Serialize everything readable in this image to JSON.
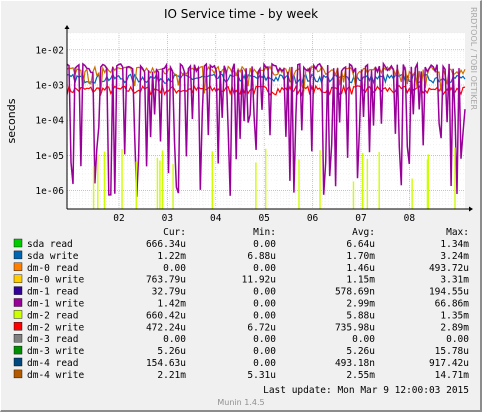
{
  "chart_data": {
    "type": "line",
    "title": "IO Service time - by week",
    "ylabel": "seconds",
    "y_scale": "log",
    "ylim": [
      3e-07,
      0.03
    ],
    "y_ticks": [
      {
        "value": 0.01,
        "label": "1e-02"
      },
      {
        "value": 0.001,
        "label": "1e-03"
      },
      {
        "value": 0.0001,
        "label": "1e-04"
      },
      {
        "value": 1e-05,
        "label": "1e-05"
      },
      {
        "value": 1e-06,
        "label": "1e-06"
      }
    ],
    "x_ticks": [
      "02",
      "03",
      "04",
      "05",
      "06",
      "07",
      "08"
    ],
    "grid": true,
    "series": [
      {
        "name": "dm-2 write",
        "color": "#ff0000",
        "base": 0.0007
      },
      {
        "name": "sda write",
        "color": "#0066b3",
        "base": 0.0015
      },
      {
        "name": "dm-4 write",
        "color": "#cc7000",
        "base": 0.0025
      },
      {
        "name": "dm-1 write",
        "color": "#990099",
        "base": 0.003
      },
      {
        "name": "dm-2 read",
        "color": "#ccff00",
        "base": 3e-06
      }
    ],
    "legend": {
      "headers": [
        "Cur:",
        "Min:",
        "Avg:",
        "Max:"
      ],
      "rows": [
        {
          "name": "sda read",
          "color": "#00cc00",
          "cur": "666.34u",
          "min": "0.00",
          "avg": "6.64u",
          "max": "1.34m"
        },
        {
          "name": "sda write",
          "color": "#0066b3",
          "cur": "1.22m",
          "min": "6.88u",
          "avg": "1.70m",
          "max": "3.24m"
        },
        {
          "name": "dm-0 read",
          "color": "#ff8000",
          "cur": "0.00",
          "min": "0.00",
          "avg": "1.46u",
          "max": "493.72u"
        },
        {
          "name": "dm-0 write",
          "color": "#ffcc00",
          "cur": "763.79u",
          "min": "11.92u",
          "avg": "1.15m",
          "max": "3.31m"
        },
        {
          "name": "dm-1 read",
          "color": "#330099",
          "cur": "32.79u",
          "min": "0.00",
          "avg": "578.69n",
          "max": "194.55u"
        },
        {
          "name": "dm-1 write",
          "color": "#990099",
          "cur": "1.42m",
          "min": "0.00",
          "avg": "2.99m",
          "max": "66.86m"
        },
        {
          "name": "dm-2 read",
          "color": "#ccff00",
          "cur": "660.42u",
          "min": "0.00",
          "avg": "5.88u",
          "max": "1.35m"
        },
        {
          "name": "dm-2 write",
          "color": "#ff0000",
          "cur": "472.24u",
          "min": "6.72u",
          "avg": "735.98u",
          "max": "2.89m"
        },
        {
          "name": "dm-3 read",
          "color": "#808080",
          "cur": "0.00",
          "min": "0.00",
          "avg": "0.00",
          "max": "0.00"
        },
        {
          "name": "dm-3 write",
          "color": "#008f00",
          "cur": "5.26u",
          "min": "0.00",
          "avg": "5.26u",
          "max": "15.78u"
        },
        {
          "name": "dm-4 read",
          "color": "#00487d",
          "cur": "154.63u",
          "min": "0.00",
          "avg": "493.18n",
          "max": "917.42u"
        },
        {
          "name": "dm-4 write",
          "color": "#b35a00",
          "cur": "2.21m",
          "min": "5.31u",
          "avg": "2.55m",
          "max": "14.71m"
        }
      ]
    },
    "last_update": "Last update:  Mon Mar  9 12:00:03 2015",
    "footer": "Munin 1.4.5",
    "side_label": "RRDTOOL / TOBI OETIKER"
  }
}
